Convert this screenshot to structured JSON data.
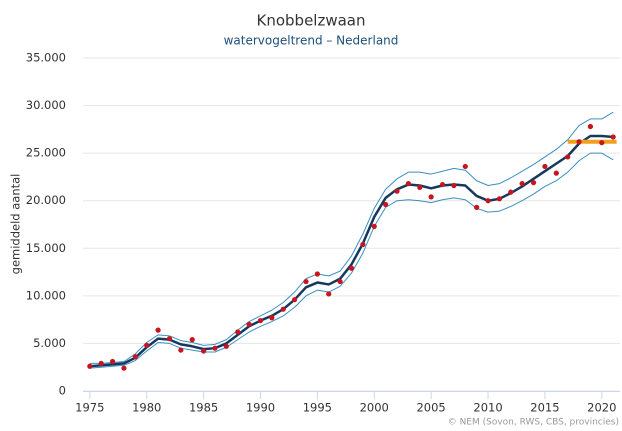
{
  "chart_data": {
    "type": "line",
    "title": "Knobbelzwaan",
    "subtitle": "watervogeltrend – Nederland",
    "y_label": "gemiddeld aantal",
    "credit": "© NEM (Sovon, RWS, CBS, provincies)",
    "grid": true,
    "xlim": [
      1974.4,
      2021.6
    ],
    "xticks": [
      1975,
      1980,
      1985,
      1990,
      1995,
      2000,
      2005,
      2010,
      2015,
      2020
    ],
    "ylim": [
      0,
      35000
    ],
    "yticks": [
      0,
      {
        "value": 5000,
        "label": "5.000"
      },
      {
        "value": 10000,
        "label": "10.000"
      },
      {
        "value": 15000,
        "label": "15.000"
      },
      {
        "value": 20000,
        "label": "20.000"
      },
      {
        "value": 25000,
        "label": "25.000"
      },
      {
        "value": 30000,
        "label": "30.000"
      },
      {
        "value": 35000,
        "label": "35.000"
      }
    ],
    "x": [
      1975,
      1976,
      1977,
      1978,
      1979,
      1980,
      1981,
      1982,
      1983,
      1984,
      1985,
      1986,
      1987,
      1988,
      1989,
      1990,
      1991,
      1992,
      1993,
      1994,
      1995,
      1996,
      1997,
      1998,
      1999,
      2000,
      2001,
      2002,
      2003,
      2004,
      2005,
      2006,
      2007,
      2008,
      2009,
      2010,
      2011,
      2012,
      2013,
      2014,
      2015,
      2016,
      2017,
      2018,
      2019,
      2020,
      2021
    ],
    "series": [
      {
        "color": "#3b8fc0",
        "width": 1,
        "values": [
          2900,
          2900,
          3000,
          3100,
          3900,
          5100,
          5900,
          5800,
          5300,
          5100,
          4800,
          4900,
          5400,
          6400,
          7300,
          7900,
          8500,
          9300,
          10400,
          11800,
          12300,
          12100,
          12600,
          14200,
          16500,
          19200,
          21200,
          22300,
          23000,
          23000,
          22800,
          23100,
          23400,
          23200,
          22100,
          21600,
          21800,
          22400,
          23100,
          23800,
          24600,
          25400,
          26400,
          27900,
          28600,
          28600,
          29300
        ]
      },
      {
        "color": "#3b8fc0",
        "width": 1,
        "values": [
          2400,
          2500,
          2600,
          2700,
          3200,
          4200,
          5100,
          5000,
          4500,
          4300,
          4100,
          4100,
          4600,
          5400,
          6200,
          6800,
          7300,
          7900,
          8800,
          10000,
          10600,
          10400,
          11000,
          12400,
          14500,
          17300,
          19300,
          20000,
          20100,
          20000,
          19800,
          20100,
          20300,
          20100,
          19200,
          18800,
          18900,
          19400,
          20000,
          20700,
          21500,
          22100,
          23000,
          24200,
          25000,
          25000,
          24300
        ]
      },
      {
        "color": "#16385e",
        "width": 2.5,
        "values": [
          2600,
          2700,
          2800,
          2900,
          3500,
          4600,
          5500,
          5400,
          4900,
          4700,
          4400,
          4500,
          5000,
          5900,
          6800,
          7400,
          7900,
          8600,
          9600,
          10900,
          11400,
          11200,
          11800,
          13300,
          15500,
          18300,
          20300,
          21200,
          21700,
          21600,
          21300,
          21600,
          21700,
          21600,
          20500,
          20000,
          20200,
          20800,
          21500,
          22300,
          23100,
          23900,
          24700,
          26000,
          26800,
          26800,
          26700
        ]
      },
      {
        "color": "#f0a020",
        "width": 4,
        "x": [
          2017,
          2021.3
        ],
        "values": [
          26200,
          26200
        ]
      },
      {
        "color": "#c8141e",
        "marker": true,
        "values": [
          2600,
          2900,
          3100,
          2400,
          3600,
          4800,
          6400,
          5500,
          4300,
          5400,
          4200,
          4500,
          4700,
          6200,
          7000,
          7400,
          7700,
          8600,
          9600,
          11500,
          12300,
          10200,
          11500,
          12900,
          15400,
          17300,
          19600,
          21000,
          21800,
          21400,
          20400,
          21700,
          21600,
          23600,
          19300,
          20000,
          20200,
          20900,
          21800,
          21900,
          23600,
          22900,
          24600,
          26200,
          27800,
          26100,
          26700
        ]
      }
    ]
  }
}
